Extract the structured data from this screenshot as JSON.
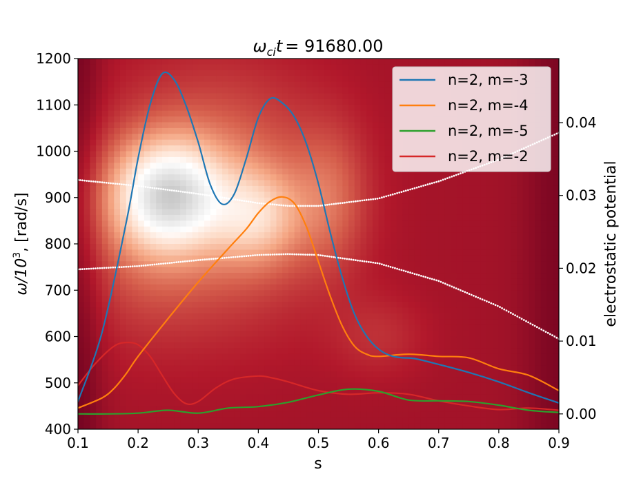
{
  "chart_data": {
    "type": "line",
    "title": "ω_ci t = 91680.00",
    "title_parts": {
      "omega": "ω",
      "sub": "ci",
      "t": "t",
      "value": "= 91680.00"
    },
    "xlabel": "s",
    "ylabel_left": {
      "main": "ω/10",
      "sup": "3",
      "unit": ", [rad/s]"
    },
    "ylabel_right": "electrostatic potential",
    "xlim": [
      0.1,
      0.9
    ],
    "ylim_left": [
      400,
      1200
    ],
    "ylim_right": [
      -0.0021,
      0.0488
    ],
    "x_ticks": [
      "0.1",
      "0.2",
      "0.3",
      "0.4",
      "0.5",
      "0.6",
      "0.7",
      "0.8",
      "0.9"
    ],
    "y_left_ticks": [
      "400",
      "500",
      "600",
      "700",
      "800",
      "900",
      "1000",
      "1100",
      "1200"
    ],
    "y_right_ticks": [
      "0.00",
      "0.01",
      "0.02",
      "0.03",
      "0.04"
    ],
    "legend_position": "top-right",
    "heatmap": {
      "colormap": "RdGy",
      "description_peak": {
        "s": 0.26,
        "omega": 900
      }
    },
    "dotted_curves": [
      {
        "name": "upper continuum",
        "color": "#ffffff",
        "x": [
          0.1,
          0.2,
          0.3,
          0.4,
          0.45,
          0.5,
          0.6,
          0.7,
          0.8,
          0.9
        ],
        "y": [
          938,
          925,
          908,
          888,
          882,
          882,
          898,
          935,
          982,
          1040
        ]
      },
      {
        "name": "lower continuum",
        "color": "#ffffff",
        "x": [
          0.1,
          0.2,
          0.3,
          0.4,
          0.45,
          0.5,
          0.6,
          0.7,
          0.8,
          0.9
        ],
        "y": [
          745,
          752,
          765,
          776,
          778,
          776,
          758,
          720,
          665,
          595
        ]
      }
    ],
    "series": [
      {
        "name": "n=2, m=-3",
        "color": "#1f77b4",
        "x": [
          0.1,
          0.14,
          0.18,
          0.2,
          0.22,
          0.24,
          0.26,
          0.28,
          0.3,
          0.32,
          0.34,
          0.36,
          0.38,
          0.4,
          0.42,
          0.44,
          0.46,
          0.48,
          0.5,
          0.52,
          0.54,
          0.56,
          0.58,
          0.6,
          0.62,
          0.64,
          0.66,
          0.7,
          0.75,
          0.8,
          0.85,
          0.9
        ],
        "y": [
          0.0017,
          0.0112,
          0.0262,
          0.0351,
          0.0425,
          0.0467,
          0.0459,
          0.0423,
          0.0373,
          0.0315,
          0.0288,
          0.0302,
          0.0351,
          0.0407,
          0.0433,
          0.0427,
          0.0408,
          0.0371,
          0.0316,
          0.0248,
          0.0186,
          0.0137,
          0.0107,
          0.0089,
          0.008,
          0.0077,
          0.0076,
          0.0068,
          0.0057,
          0.0044,
          0.0029,
          0.0015
        ]
      },
      {
        "name": "n=2, m=-4",
        "color": "#ff7f0e",
        "x": [
          0.1,
          0.14,
          0.16,
          0.18,
          0.2,
          0.25,
          0.3,
          0.35,
          0.38,
          0.4,
          0.42,
          0.44,
          0.46,
          0.48,
          0.5,
          0.52,
          0.54,
          0.56,
          0.58,
          0.6,
          0.65,
          0.7,
          0.75,
          0.8,
          0.85,
          0.9
        ],
        "y": [
          0.0008,
          0.0022,
          0.0035,
          0.0055,
          0.0079,
          0.0131,
          0.0181,
          0.0227,
          0.0254,
          0.0276,
          0.0292,
          0.0298,
          0.0289,
          0.0257,
          0.0209,
          0.0161,
          0.012,
          0.0093,
          0.0082,
          0.0079,
          0.0082,
          0.0079,
          0.0077,
          0.0062,
          0.0053,
          0.0032
        ]
      },
      {
        "name": "n=2, m=-5",
        "color": "#2ca02c",
        "x": [
          0.1,
          0.15,
          0.2,
          0.25,
          0.3,
          0.35,
          0.4,
          0.45,
          0.5,
          0.55,
          0.6,
          0.65,
          0.7,
          0.75,
          0.8,
          0.85,
          0.9
        ],
        "y": [
          0.0,
          0.0,
          0.0001,
          0.0005,
          0.0001,
          0.0008,
          0.001,
          0.0016,
          0.0026,
          0.0034,
          0.0031,
          0.0019,
          0.0018,
          0.0017,
          0.0012,
          0.0005,
          0.0002
        ]
      },
      {
        "name": "n=2, m=-2",
        "color": "#d62728",
        "x": [
          0.1,
          0.13,
          0.16,
          0.18,
          0.2,
          0.22,
          0.24,
          0.26,
          0.28,
          0.3,
          0.33,
          0.36,
          0.4,
          0.42,
          0.45,
          0.5,
          0.55,
          0.6,
          0.65,
          0.7,
          0.75,
          0.8,
          0.85,
          0.9
        ],
        "y": [
          0.0039,
          0.007,
          0.0093,
          0.0098,
          0.0095,
          0.0079,
          0.0053,
          0.0028,
          0.0014,
          0.0017,
          0.0036,
          0.0048,
          0.0052,
          0.005,
          0.0044,
          0.0032,
          0.0027,
          0.0029,
          0.0027,
          0.0018,
          0.0011,
          0.0006,
          0.0008,
          0.0005
        ]
      }
    ]
  }
}
